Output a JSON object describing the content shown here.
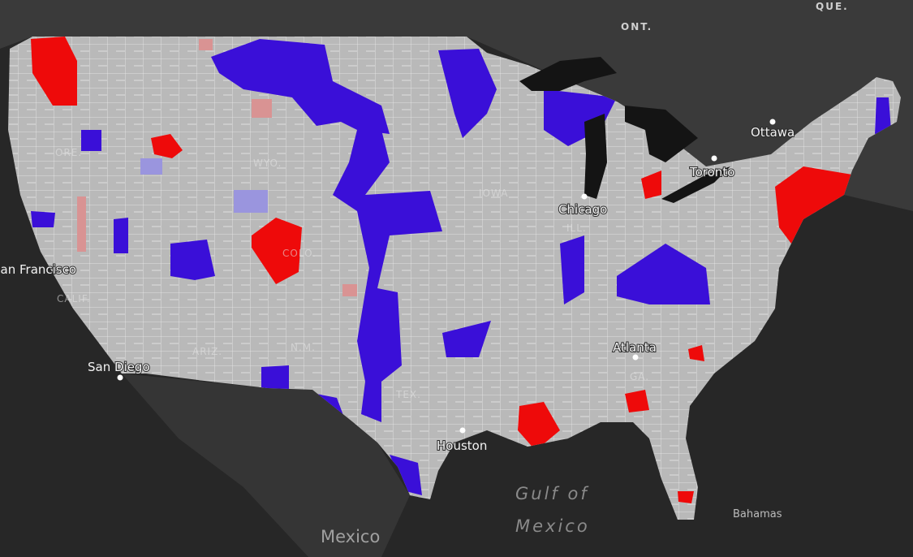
{
  "map": {
    "labels": {
      "que": "QUE.",
      "ont": "ONT.",
      "ottawa": "Ottawa",
      "toronto": "Toronto",
      "chicago": "Chicago",
      "san_francisco": "San Francisco",
      "san_diego": "San Diego",
      "houston": "Houston",
      "atlanta": "Atlanta",
      "gulf_1": "Gulf of",
      "gulf_2": "Mexico",
      "mexico": "Mexico",
      "bahamas": "Bahamas",
      "ore": "ORE.",
      "wyo": "WYO.",
      "calif": "CALIF.",
      "ariz": "ARIZ.",
      "nm": "N.M.",
      "colo": "COLO.",
      "tex": "TEX.",
      "iowa": "IOWA",
      "ill": "ILL.",
      "ga": "GA."
    }
  }
}
